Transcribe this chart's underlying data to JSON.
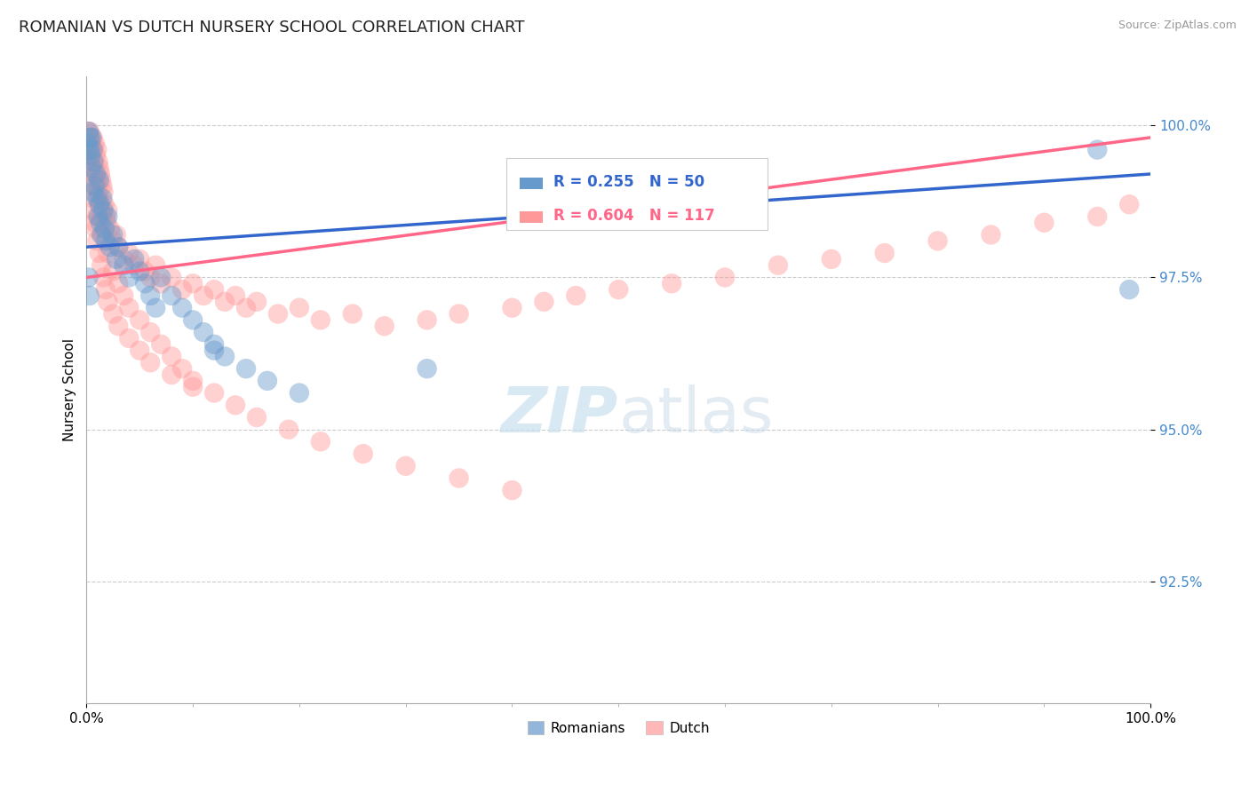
{
  "title": "ROMANIAN VS DUTCH NURSERY SCHOOL CORRELATION CHART",
  "source": "Source: ZipAtlas.com",
  "ylabel": "Nursery School",
  "xlim": [
    0.0,
    1.0
  ],
  "ylim": [
    0.905,
    1.008
  ],
  "yticks": [
    0.925,
    0.95,
    0.975,
    1.0
  ],
  "ytick_labels": [
    "92.5%",
    "95.0%",
    "97.5%",
    "100.0%"
  ],
  "xtick_labels": [
    "0.0%",
    "100.0%"
  ],
  "xticks": [
    0.0,
    1.0
  ],
  "r_romanian": 0.255,
  "n_romanian": 50,
  "r_dutch": 0.604,
  "n_dutch": 117,
  "romanian_color": "#6699CC",
  "dutch_color": "#FF9999",
  "trendline_romanian_color": "#3366CC",
  "trendline_dutch_color": "#FF6688",
  "watermark_zip": "ZIP",
  "watermark_atlas": "atlas",
  "legend_r_rom_text": "R = 0.255",
  "legend_n_rom_text": "N = 50",
  "legend_r_dutch_text": "R = 0.604",
  "legend_n_dutch_text": "N = 117",
  "rom_trendline": [
    0.98,
    0.992
  ],
  "dutch_trendline": [
    0.975,
    0.998
  ],
  "romanian_pts_x": [
    0.001,
    0.002,
    0.003,
    0.003,
    0.004,
    0.005,
    0.005,
    0.006,
    0.006,
    0.007,
    0.008,
    0.009,
    0.01,
    0.011,
    0.012,
    0.012,
    0.013,
    0.014,
    0.015,
    0.016,
    0.017,
    0.018,
    0.02,
    0.022,
    0.025,
    0.028,
    0.03,
    0.035,
    0.04,
    0.045,
    0.05,
    0.055,
    0.06,
    0.065,
    0.07,
    0.08,
    0.09,
    0.1,
    0.11,
    0.12,
    0.13,
    0.15,
    0.17,
    0.2,
    0.002,
    0.003,
    0.12,
    0.32,
    0.95,
    0.98
  ],
  "romanian_pts_y": [
    0.997,
    0.999,
    0.998,
    0.996,
    0.995,
    0.998,
    0.993,
    0.996,
    0.989,
    0.994,
    0.99,
    0.992,
    0.988,
    0.985,
    0.991,
    0.987,
    0.984,
    0.982,
    0.988,
    0.986,
    0.983,
    0.981,
    0.985,
    0.98,
    0.982,
    0.978,
    0.98,
    0.977,
    0.975,
    0.978,
    0.976,
    0.974,
    0.972,
    0.97,
    0.975,
    0.972,
    0.97,
    0.968,
    0.966,
    0.964,
    0.962,
    0.96,
    0.958,
    0.956,
    0.975,
    0.972,
    0.963,
    0.96,
    0.996,
    0.973
  ],
  "dutch_pts_x": [
    0.001,
    0.002,
    0.002,
    0.003,
    0.003,
    0.004,
    0.004,
    0.005,
    0.005,
    0.006,
    0.006,
    0.007,
    0.007,
    0.008,
    0.008,
    0.009,
    0.009,
    0.01,
    0.01,
    0.011,
    0.011,
    0.012,
    0.012,
    0.013,
    0.013,
    0.014,
    0.014,
    0.015,
    0.015,
    0.016,
    0.017,
    0.018,
    0.019,
    0.02,
    0.022,
    0.025,
    0.028,
    0.03,
    0.035,
    0.04,
    0.045,
    0.05,
    0.055,
    0.06,
    0.065,
    0.07,
    0.08,
    0.09,
    0.1,
    0.11,
    0.12,
    0.13,
    0.14,
    0.15,
    0.16,
    0.18,
    0.2,
    0.22,
    0.25,
    0.28,
    0.32,
    0.35,
    0.4,
    0.43,
    0.46,
    0.5,
    0.55,
    0.6,
    0.65,
    0.7,
    0.75,
    0.8,
    0.85,
    0.9,
    0.95,
    0.98,
    0.003,
    0.005,
    0.006,
    0.007,
    0.008,
    0.009,
    0.01,
    0.012,
    0.014,
    0.016,
    0.018,
    0.02,
    0.025,
    0.03,
    0.04,
    0.05,
    0.06,
    0.08,
    0.1,
    0.01,
    0.015,
    0.02,
    0.025,
    0.03,
    0.035,
    0.04,
    0.05,
    0.06,
    0.07,
    0.08,
    0.09,
    0.1,
    0.12,
    0.14,
    0.16,
    0.19,
    0.22,
    0.26,
    0.3,
    0.35,
    0.4
  ],
  "dutch_pts_y": [
    0.999,
    0.998,
    0.997,
    0.999,
    0.997,
    0.998,
    0.996,
    0.997,
    0.995,
    0.998,
    0.994,
    0.996,
    0.993,
    0.997,
    0.992,
    0.995,
    0.991,
    0.996,
    0.99,
    0.994,
    0.989,
    0.993,
    0.988,
    0.992,
    0.987,
    0.991,
    0.986,
    0.99,
    0.985,
    0.989,
    0.987,
    0.985,
    0.984,
    0.986,
    0.983,
    0.981,
    0.982,
    0.98,
    0.978,
    0.979,
    0.977,
    0.978,
    0.976,
    0.975,
    0.977,
    0.974,
    0.975,
    0.973,
    0.974,
    0.972,
    0.973,
    0.971,
    0.972,
    0.97,
    0.971,
    0.969,
    0.97,
    0.968,
    0.969,
    0.967,
    0.968,
    0.969,
    0.97,
    0.971,
    0.972,
    0.973,
    0.974,
    0.975,
    0.977,
    0.978,
    0.979,
    0.981,
    0.982,
    0.984,
    0.985,
    0.987,
    0.993,
    0.99,
    0.988,
    0.986,
    0.984,
    0.983,
    0.981,
    0.979,
    0.977,
    0.975,
    0.973,
    0.971,
    0.969,
    0.967,
    0.965,
    0.963,
    0.961,
    0.959,
    0.957,
    0.985,
    0.982,
    0.979,
    0.976,
    0.974,
    0.972,
    0.97,
    0.968,
    0.966,
    0.964,
    0.962,
    0.96,
    0.958,
    0.956,
    0.954,
    0.952,
    0.95,
    0.948,
    0.946,
    0.944,
    0.942,
    0.94
  ]
}
